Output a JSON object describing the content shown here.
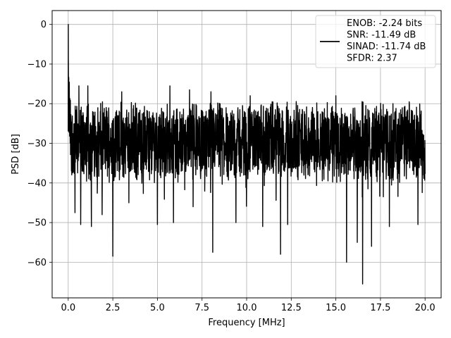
{
  "chart_data": {
    "type": "line",
    "xlabel": "Frequency [MHz]",
    "ylabel": "PSD [dB]",
    "xlim": [
      -0.9,
      20.9
    ],
    "ylim": [
      -69,
      3.5
    ],
    "grid": true,
    "legend_position": "top-right",
    "x_ticks": [
      0.0,
      2.5,
      5.0,
      7.5,
      10.0,
      12.5,
      15.0,
      17.5,
      20.0
    ],
    "x_tick_labels": [
      "0.0",
      "2.5",
      "5.0",
      "7.5",
      "10.0",
      "12.5",
      "15.0",
      "17.5",
      "20.0"
    ],
    "y_ticks": [
      0,
      -10,
      -20,
      -30,
      -40,
      -50,
      -60
    ],
    "y_tick_labels": [
      "0",
      "−10",
      "−20",
      "−30",
      "−40",
      "−50",
      "−60"
    ],
    "series": [
      {
        "legend_lines": [
          "ENOB: -2.24 bits",
          "SNR: -11.49 dB",
          "SINAD: -11.74 dB",
          "SFDR: 2.37"
        ],
        "color": "#000000",
        "x_range": [
          0,
          20
        ],
        "noise_floor_db": -29.5,
        "noise_band_db": [
          -37,
          -18
        ],
        "peak": {
          "x": 0.0,
          "y": 0.0
        },
        "dips": [
          {
            "x": 0.18,
            "y": -37
          },
          {
            "x": 0.38,
            "y": -47.5
          },
          {
            "x": 0.7,
            "y": -50.5
          },
          {
            "x": 1.3,
            "y": -51
          },
          {
            "x": 1.9,
            "y": -48
          },
          {
            "x": 2.5,
            "y": -58.5
          },
          {
            "x": 3.4,
            "y": -45
          },
          {
            "x": 5.0,
            "y": -50.5
          },
          {
            "x": 5.9,
            "y": -50
          },
          {
            "x": 7.0,
            "y": -46
          },
          {
            "x": 8.1,
            "y": -57.5
          },
          {
            "x": 9.4,
            "y": -50
          },
          {
            "x": 10.9,
            "y": -51
          },
          {
            "x": 11.9,
            "y": -58
          },
          {
            "x": 12.3,
            "y": -50.5
          },
          {
            "x": 15.6,
            "y": -60
          },
          {
            "x": 16.2,
            "y": -55
          },
          {
            "x": 16.5,
            "y": -65.5
          },
          {
            "x": 17.0,
            "y": -56
          },
          {
            "x": 18.0,
            "y": -51
          },
          {
            "x": 19.6,
            "y": -50.5
          }
        ],
        "spikes": [
          {
            "x": 0.6,
            "y": -15.5
          },
          {
            "x": 1.1,
            "y": -15.5
          },
          {
            "x": 3.0,
            "y": -17
          },
          {
            "x": 5.7,
            "y": -15.5
          },
          {
            "x": 6.8,
            "y": -16.5
          },
          {
            "x": 8.0,
            "y": -17
          },
          {
            "x": 10.2,
            "y": -18
          },
          {
            "x": 15.0,
            "y": -18
          },
          {
            "x": 18.2,
            "y": -20
          }
        ]
      }
    ]
  }
}
